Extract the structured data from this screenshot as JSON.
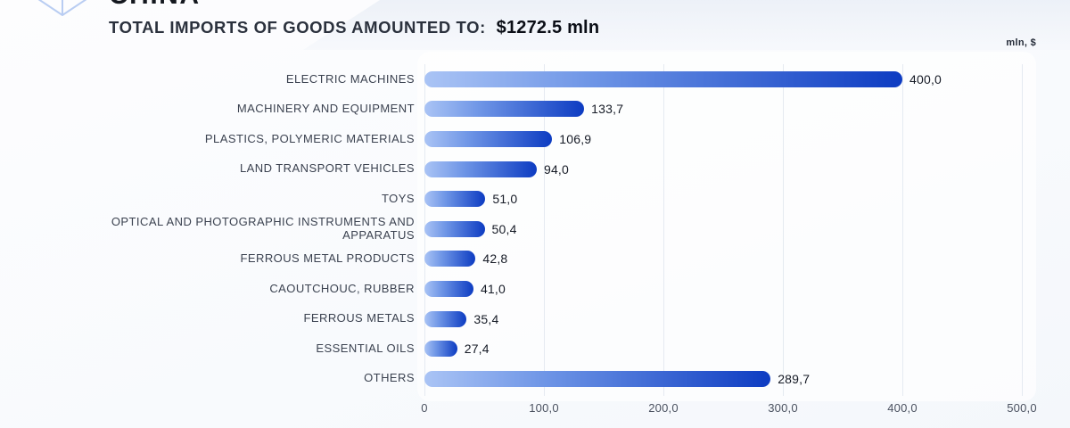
{
  "header": {
    "country": "CHINA",
    "subtitle_prefix": "TOTAL IMPORTS OF GOODS AMOUNTED TO:",
    "subtitle_value": "$1272.5 mln",
    "unit_label": "mln, $",
    "logo_icon": "crystal-logo-icon"
  },
  "colors": {
    "bar_gradient_start": "#aac4f5",
    "bar_gradient_end": "#0d3cc2",
    "gridline": "#e5eaf1",
    "category_text": "#3b4250",
    "value_text": "#161b26",
    "tick_text": "#4b5260"
  },
  "chart_data": {
    "type": "bar",
    "orientation": "horizontal",
    "title": "TOTAL IMPORTS OF GOODS AMOUNTED TO: $1272.5 mln",
    "unit": "mln, $",
    "grid": true,
    "legend": "none",
    "xlim": [
      0,
      500
    ],
    "x_ticks": [
      "0",
      "100,0",
      "200,0",
      "300,0",
      "400,0",
      "500,0"
    ],
    "x_tick_values": [
      0,
      100,
      200,
      300,
      400,
      500
    ],
    "categories": [
      "ELECTRIC MACHINES",
      "MACHINERY AND EQUIPMENT",
      "PLASTICS, POLYMERIC MATERIALS",
      "LAND TRANSPORT VEHICLES",
      "TOYS",
      "OPTICAL AND PHOTOGRAPHIC INSTRUMENTS AND APPARATUS",
      "FERROUS METAL PRODUCTS",
      "CAOUTCHOUC, RUBBER",
      "FERROUS METALS",
      "ESSENTIAL OILS",
      "OTHERS"
    ],
    "values": [
      400.0,
      133.7,
      106.9,
      94.0,
      51.0,
      50.4,
      42.8,
      41.0,
      35.4,
      27.4,
      289.7
    ],
    "value_labels": [
      "400,0",
      "133,7",
      "106,9",
      "94,0",
      "51,0",
      "50,4",
      "42,8",
      "41,0",
      "35,4",
      "27,4",
      "289,7"
    ]
  }
}
